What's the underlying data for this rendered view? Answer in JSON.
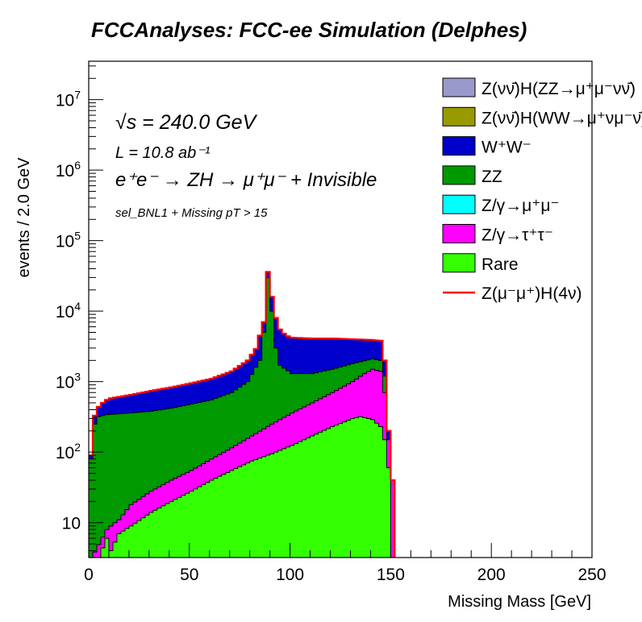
{
  "title": "FCCAnalyses: FCC-ee Simulation (Delphes)",
  "annotations": {
    "sqrt_s": "√s = 240.0 GeV",
    "lumi": "L = 10.8 ab⁻¹",
    "process": "e⁺e⁻ → ZH → μ⁺μ⁻ + Invisible",
    "selection": "sel_BNL1 + Missing pT > 15"
  },
  "chart_data": {
    "type": "area",
    "stacked": true,
    "log_y": true,
    "xlabel": "Missing Mass [GeV]",
    "ylabel": "events / 2.0 GeV",
    "xlim": [
      0,
      250
    ],
    "ylim": [
      3.2,
      35000000
    ],
    "bin_width": 2.0,
    "x_ticks": [
      0,
      50,
      100,
      150,
      200,
      250
    ],
    "x_tick_labels": [
      "0",
      "50",
      "100",
      "150",
      "200",
      "250"
    ],
    "y_tick_labels": [
      {
        "value": 10,
        "base": "10",
        "exp": ""
      },
      {
        "value": 100,
        "base": "10",
        "exp": "2"
      },
      {
        "value": 1000,
        "base": "10",
        "exp": "3"
      },
      {
        "value": 10000,
        "base": "10",
        "exp": "4"
      },
      {
        "value": 100000,
        "base": "10",
        "exp": "5"
      },
      {
        "value": 1000000,
        "base": "10",
        "exp": "6"
      },
      {
        "value": 10000000,
        "base": "10",
        "exp": "7"
      }
    ],
    "legend_position": "top-right",
    "legend": [
      {
        "label": "Z(νν̄)H(ZZ→μ⁺μ⁻νν̄)",
        "color": "#9999cc",
        "kind": "box"
      },
      {
        "label": "Z(νν̄)H(WW→μ⁺νμ⁻ν̄)",
        "color": "#999900",
        "kind": "box"
      },
      {
        "label": "W⁺W⁻",
        "color": "#0000cc",
        "kind": "box"
      },
      {
        "label": "ZZ",
        "color": "#009900",
        "kind": "box"
      },
      {
        "label": "Z/γ→μ⁺μ⁻",
        "color": "#00ffff",
        "kind": "box"
      },
      {
        "label": "Z/γ→τ⁺τ⁻",
        "color": "#ff00ff",
        "kind": "box"
      },
      {
        "label": "Rare",
        "color": "#33ff00",
        "kind": "box"
      },
      {
        "label": "Z(μ⁻μ⁺)H(4ν)",
        "color": "#ff0000",
        "kind": "line"
      }
    ],
    "rare_points": [
      [
        1,
        3
      ],
      [
        5,
        3.2
      ],
      [
        9,
        6
      ],
      [
        11,
        4
      ],
      [
        15,
        7
      ],
      [
        21,
        9
      ],
      [
        31,
        14
      ],
      [
        41,
        20
      ],
      [
        51,
        28
      ],
      [
        61,
        40
      ],
      [
        71,
        55
      ],
      [
        81,
        75
      ],
      [
        91,
        95
      ],
      [
        101,
        125
      ],
      [
        111,
        170
      ],
      [
        121,
        230
      ],
      [
        131,
        300
      ],
      [
        135,
        320
      ],
      [
        141,
        290
      ],
      [
        145,
        230
      ],
      [
        147,
        150
      ],
      [
        149,
        60
      ],
      [
        151,
        3
      ]
    ],
    "tautau_points": [
      [
        1,
        3
      ],
      [
        9,
        8
      ],
      [
        13,
        10
      ],
      [
        15,
        11
      ],
      [
        21,
        18
      ],
      [
        31,
        28
      ],
      [
        41,
        40
      ],
      [
        51,
        55
      ],
      [
        61,
        80
      ],
      [
        71,
        115
      ],
      [
        81,
        170
      ],
      [
        91,
        250
      ],
      [
        101,
        360
      ],
      [
        111,
        500
      ],
      [
        121,
        700
      ],
      [
        131,
        1000
      ],
      [
        137,
        1300
      ],
      [
        141,
        1500
      ],
      [
        145,
        1400
      ],
      [
        147,
        700
      ],
      [
        149,
        150
      ],
      [
        151,
        40
      ],
      [
        153,
        3
      ]
    ],
    "zz_points": [
      [
        1,
        80
      ],
      [
        3,
        250
      ],
      [
        5,
        320
      ],
      [
        9,
        340
      ],
      [
        21,
        360
      ],
      [
        31,
        380
      ],
      [
        41,
        420
      ],
      [
        51,
        480
      ],
      [
        61,
        550
      ],
      [
        71,
        700
      ],
      [
        79,
        1000
      ],
      [
        83,
        1600
      ],
      [
        85,
        2000
      ],
      [
        87,
        5000
      ],
      [
        89,
        30000
      ],
      [
        91,
        10000
      ],
      [
        93,
        3000
      ],
      [
        95,
        1700
      ],
      [
        101,
        1300
      ],
      [
        111,
        1300
      ],
      [
        121,
        1500
      ],
      [
        131,
        1800
      ],
      [
        141,
        2100
      ],
      [
        145,
        2000
      ],
      [
        147,
        1200
      ],
      [
        149,
        150
      ],
      [
        151,
        40
      ],
      [
        153,
        3
      ]
    ],
    "ww_points": [
      [
        1,
        90
      ],
      [
        3,
        330
      ],
      [
        5,
        440
      ],
      [
        7,
        500
      ],
      [
        9,
        550
      ],
      [
        11,
        580
      ],
      [
        21,
        650
      ],
      [
        31,
        740
      ],
      [
        41,
        830
      ],
      [
        51,
        950
      ],
      [
        61,
        1100
      ],
      [
        71,
        1400
      ],
      [
        79,
        2000
      ],
      [
        83,
        2900
      ],
      [
        85,
        4500
      ],
      [
        87,
        7000
      ],
      [
        89,
        36000
      ],
      [
        91,
        16000
      ],
      [
        93,
        8000
      ],
      [
        95,
        5500
      ],
      [
        97,
        4800
      ],
      [
        99,
        4400
      ],
      [
        101,
        4200
      ],
      [
        111,
        4100
      ],
      [
        121,
        4100
      ],
      [
        131,
        4000
      ],
      [
        141,
        3900
      ],
      [
        145,
        3800
      ],
      [
        147,
        2000
      ],
      [
        149,
        200
      ],
      [
        151,
        40
      ],
      [
        153,
        3
      ]
    ],
    "signal_points": [
      [
        1,
        90
      ],
      [
        3,
        330
      ],
      [
        5,
        440
      ],
      [
        7,
        500
      ],
      [
        9,
        550
      ],
      [
        11,
        580
      ],
      [
        21,
        650
      ],
      [
        31,
        740
      ],
      [
        41,
        830
      ],
      [
        51,
        950
      ],
      [
        61,
        1100
      ],
      [
        71,
        1400
      ],
      [
        79,
        2000
      ],
      [
        83,
        2900
      ],
      [
        85,
        4500
      ],
      [
        87,
        7000
      ],
      [
        89,
        36000
      ],
      [
        91,
        16000
      ],
      [
        93,
        8000
      ],
      [
        95,
        5500
      ],
      [
        97,
        4800
      ],
      [
        99,
        4400
      ],
      [
        101,
        4200
      ],
      [
        111,
        4100
      ],
      [
        121,
        4100
      ],
      [
        131,
        4000
      ],
      [
        141,
        3900
      ],
      [
        145,
        3800
      ],
      [
        147,
        2000
      ],
      [
        149,
        200
      ],
      [
        151,
        40
      ],
      [
        153,
        3
      ],
      [
        250,
        3
      ]
    ]
  }
}
